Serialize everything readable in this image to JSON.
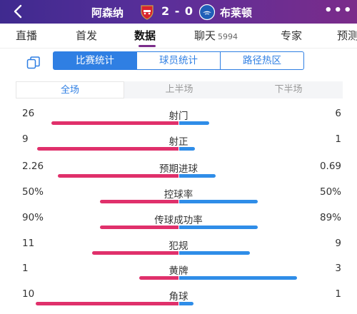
{
  "header": {
    "home_team": "阿森纳",
    "score": "2 - 0",
    "away_team": "布莱顿",
    "home_color": "#d9232d",
    "away_color": "#1f5fb8"
  },
  "tabs": [
    {
      "label": "直播",
      "count": ""
    },
    {
      "label": "首发",
      "count": ""
    },
    {
      "label": "数据",
      "count": "",
      "active": true
    },
    {
      "label": "聊天",
      "count": "5994"
    },
    {
      "label": "专家",
      "count": ""
    },
    {
      "label": "预测",
      "count": ""
    }
  ],
  "segments": [
    "比赛统计",
    "球员统计",
    "路径热区"
  ],
  "halves": [
    "全场",
    "上半场",
    "下半场"
  ],
  "colors": {
    "home_bar": "#e0306b",
    "away_bar": "#2f8de8",
    "accent": "#2f7fe3"
  },
  "stats": [
    {
      "label": "射门",
      "home": "26",
      "away": "6",
      "home_frac": 0.81,
      "away_frac": 0.19
    },
    {
      "label": "射正",
      "home": "9",
      "away": "1",
      "home_frac": 0.9,
      "away_frac": 0.1
    },
    {
      "label": "预期进球",
      "home": "2.26",
      "away": "0.69",
      "home_frac": 0.77,
      "away_frac": 0.23
    },
    {
      "label": "控球率",
      "home": "50%",
      "away": "50%",
      "home_frac": 0.5,
      "away_frac": 0.5
    },
    {
      "label": "传球成功率",
      "home": "90%",
      "away": "89%",
      "home_frac": 0.5,
      "away_frac": 0.5
    },
    {
      "label": "犯规",
      "home": "11",
      "away": "9",
      "home_frac": 0.55,
      "away_frac": 0.45
    },
    {
      "label": "黄牌",
      "home": "1",
      "away": "3",
      "home_frac": 0.25,
      "away_frac": 0.75
    },
    {
      "label": "角球",
      "home": "10",
      "away": "1",
      "home_frac": 0.91,
      "away_frac": 0.09
    }
  ]
}
